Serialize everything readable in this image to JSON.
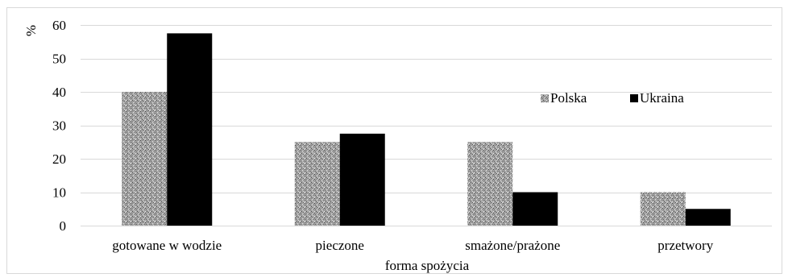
{
  "chart_data": {
    "type": "bar",
    "title": "",
    "xlabel": "forma spożycia",
    "ylabel": "%",
    "ylim": [
      0,
      60
    ],
    "yticks": [
      0,
      10,
      20,
      30,
      40,
      50,
      60
    ],
    "grid": true,
    "legend_position": "top-right",
    "categories": [
      "gotowane w wodzie",
      "pieczone",
      "smażone/prażone",
      "przetwory"
    ],
    "series": [
      {
        "name": "Polska",
        "values": [
          40,
          25,
          25,
          10
        ],
        "color": "#9a9a9a",
        "pattern": "speckled-gray"
      },
      {
        "name": "Ukraina",
        "values": [
          57.5,
          27.5,
          10,
          5
        ],
        "color": "#000000",
        "pattern": "solid"
      }
    ]
  }
}
